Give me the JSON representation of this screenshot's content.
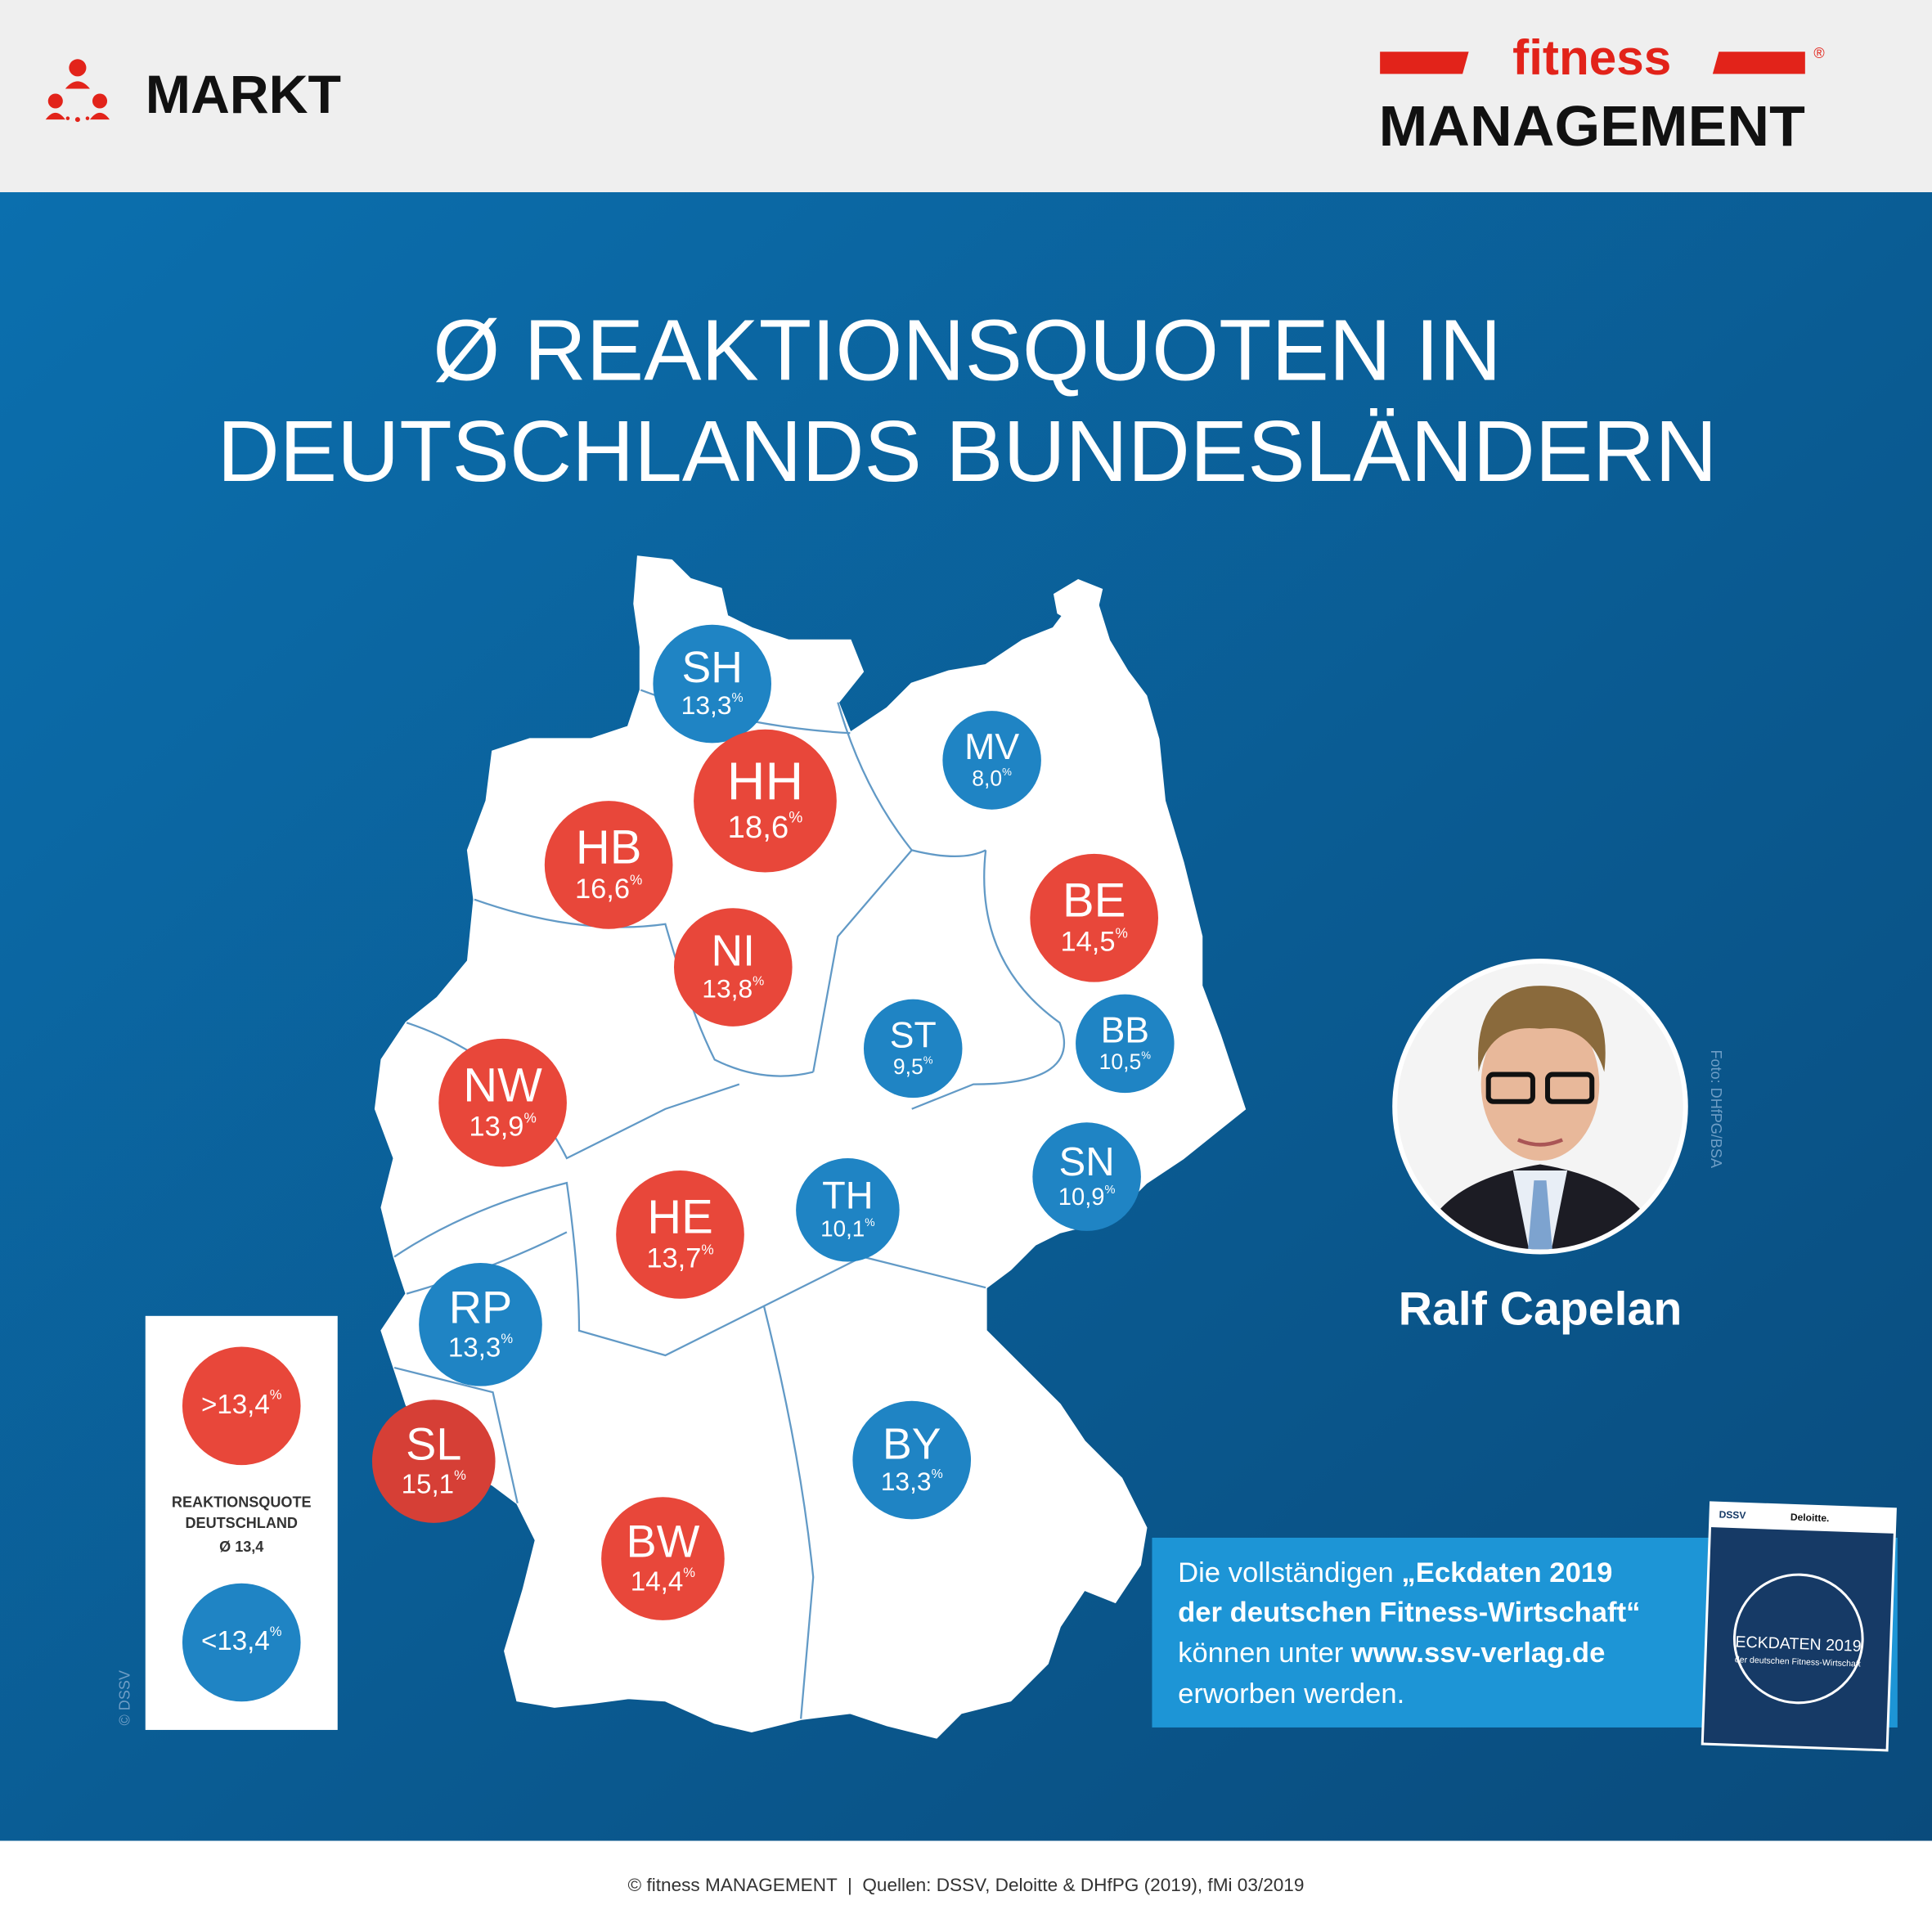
{
  "header": {
    "section": "MARKT",
    "logo_top": "fitness",
    "logo_bottom": "MANAGEMENT",
    "logo_mark": "®"
  },
  "title": {
    "line1": "Ø REAKTIONSQUOTEN IN",
    "line2": "DEUTSCHLANDS BUNDESLÄNDERN"
  },
  "regions": [
    {
      "code": "SH",
      "value": "13,3",
      "unit": "%",
      "color": "#1f84c4"
    },
    {
      "code": "MV",
      "value": "8,0",
      "unit": "%",
      "color": "#1f84c4"
    },
    {
      "code": "HH",
      "value": "18,6",
      "unit": "%",
      "color": "#e8473a"
    },
    {
      "code": "HB",
      "value": "16,6",
      "unit": "%",
      "color": "#e8473a"
    },
    {
      "code": "BE",
      "value": "14,5",
      "unit": "%",
      "color": "#e8473a"
    },
    {
      "code": "NI",
      "value": "13,8",
      "unit": "%",
      "color": "#e8473a"
    },
    {
      "code": "ST",
      "value": "9,5",
      "unit": "%",
      "color": "#1f84c4"
    },
    {
      "code": "BB",
      "value": "10,5",
      "unit": "%",
      "color": "#1f84c4"
    },
    {
      "code": "NW",
      "value": "13,9",
      "unit": "%",
      "color": "#e8473a"
    },
    {
      "code": "SN",
      "value": "10,9",
      "unit": "%",
      "color": "#1f84c4"
    },
    {
      "code": "TH",
      "value": "10,1",
      "unit": "%",
      "color": "#1f84c4"
    },
    {
      "code": "HE",
      "value": "13,7",
      "unit": "%",
      "color": "#e8473a"
    },
    {
      "code": "RP",
      "value": "13,3",
      "unit": "%",
      "color": "#1f84c4"
    },
    {
      "code": "SL",
      "value": "15,1",
      "unit": "%",
      "color": "#d63f36"
    },
    {
      "code": "BY",
      "value": "13,3",
      "unit": "%",
      "color": "#1f84c4"
    },
    {
      "code": "BW",
      "value": "14,4",
      "unit": "%",
      "color": "#e8473a"
    }
  ],
  "legend": {
    "above": {
      "label": ">13,4",
      "unit": "%",
      "color": "#e8473a"
    },
    "below": {
      "label": "<13,4",
      "unit": "%",
      "color": "#1f84c4"
    },
    "caption_line1": "REAKTIONSQUOTE",
    "caption_line2": "DEUTSCHLAND",
    "average": "Ø 13,4"
  },
  "person": {
    "name": "Ralf Capelan",
    "photo_credit": "Foto: DHfPG/BSA"
  },
  "map_credit": "© DSSV",
  "promo": {
    "line1_regular": "Die vollständigen ",
    "line1_bold": "„Eckdaten 2019",
    "line2_bold": "der deutschen Fitness-Wirtschaft“",
    "line3_regular": "können unter ",
    "line3_bold": "www.ssv-verlag.de",
    "line4_regular": "erworben werden."
  },
  "book": {
    "publisher": "DSSV",
    "partner": "Deloitte.",
    "title": "ECKDATEN 2019",
    "subtitle": "der deutschen Fitness-Wirtschaft"
  },
  "footer": "© fitness MANAGEMENT  |  Quellen: DSSV, Deloitte & DHfPG (2019), fMi 03/2019"
}
